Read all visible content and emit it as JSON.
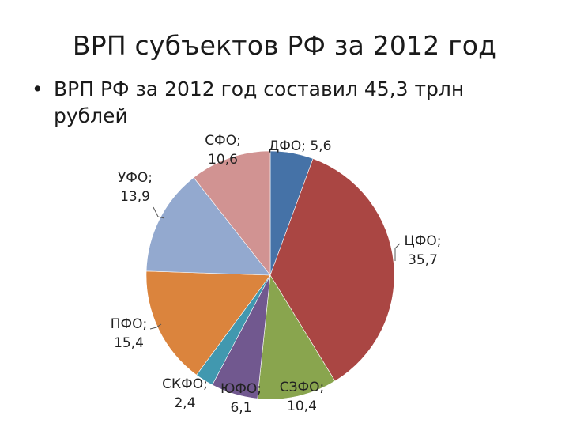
{
  "slide": {
    "title": "ВРП субъектов РФ за 2012 год",
    "bullet_marker": "•",
    "bullet_text": "ВРП РФ за 2012 год составил 45,3 трлн рублей"
  },
  "chart_data": {
    "type": "pie",
    "title": "",
    "unit": "",
    "start_angle_deg": 0,
    "direction": "clockwise",
    "slices": [
      {
        "category": "ДФО",
        "value": 5.6,
        "label": "ДФО; 5,6",
        "color": "#4572A7"
      },
      {
        "category": "ЦФО",
        "value": 35.7,
        "label": "ЦФО; 35,7",
        "color": "#AA4643"
      },
      {
        "category": "СЗФО",
        "value": 10.4,
        "label": "СЗФО; 10,4",
        "color": "#89A54E"
      },
      {
        "category": "ЮФО",
        "value": 6.1,
        "label": "ЮФО; 6,1",
        "color": "#71588F"
      },
      {
        "category": "СКФО",
        "value": 2.4,
        "label": "СКФО; 2,4",
        "color": "#4198AF"
      },
      {
        "category": "ПФО",
        "value": 15.4,
        "label": "ПФО; 15,4",
        "color": "#DB843D"
      },
      {
        "category": "УФО",
        "value": 13.9,
        "label": "УФО; 13,9",
        "color": "#93A9CF"
      },
      {
        "category": "СФО",
        "value": 10.6,
        "label": "СФО; 10,6",
        "color": "#D19392"
      }
    ],
    "legend": "none",
    "data_labels": "outside"
  }
}
